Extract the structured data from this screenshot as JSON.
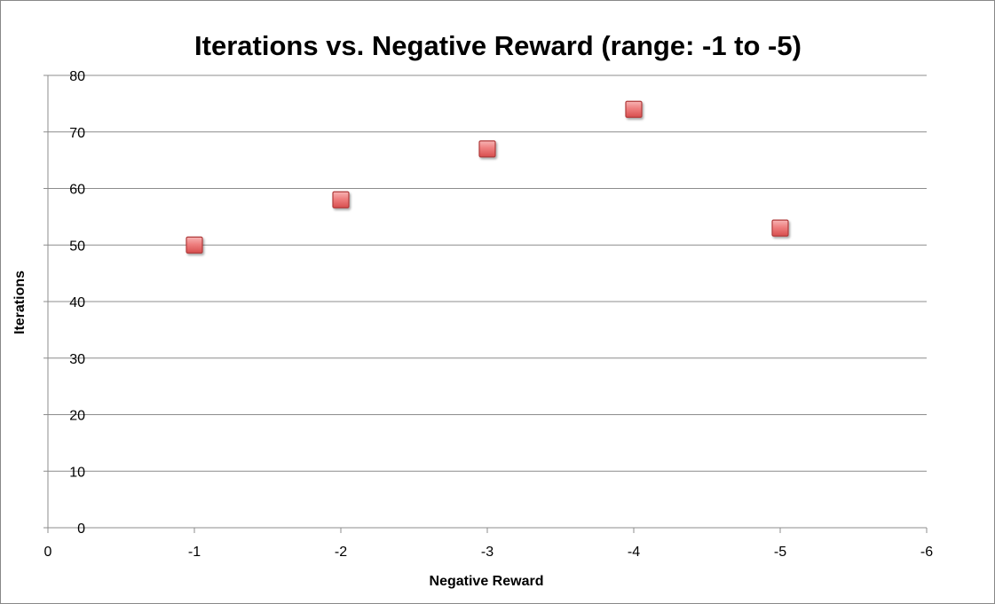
{
  "chart_data": {
    "type": "scatter",
    "title": "Iterations vs. Negative Reward (range: -1 to -5)",
    "xlabel": "Negative Reward",
    "ylabel": "Iterations",
    "x_reversed": true,
    "xlim": [
      0,
      -6
    ],
    "ylim": [
      0,
      80
    ],
    "x_ticks": [
      0,
      -1,
      -2,
      -3,
      -4,
      -5,
      -6
    ],
    "y_ticks": [
      0,
      10,
      20,
      30,
      40,
      50,
      60,
      70,
      80
    ],
    "grid": {
      "horizontal": true,
      "vertical": false
    },
    "legend": "none",
    "marker": {
      "shape": "square",
      "fill": "#E86A6A",
      "stroke": "#B03A3A"
    },
    "points": [
      {
        "x": -1,
        "y": 50
      },
      {
        "x": -2,
        "y": 58
      },
      {
        "x": -3,
        "y": 67
      },
      {
        "x": -4,
        "y": 74
      },
      {
        "x": -5,
        "y": 53
      }
    ]
  }
}
